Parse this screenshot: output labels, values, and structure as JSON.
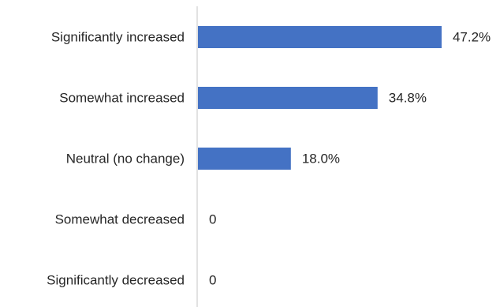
{
  "chart_data": {
    "type": "bar",
    "orientation": "horizontal",
    "categories": [
      "Significantly increased",
      "Somewhat increased",
      "Neutral (no change)",
      "Somewhat decreased",
      "Significantly decreased"
    ],
    "values": [
      47.2,
      34.8,
      18.0,
      0,
      0
    ],
    "value_labels": [
      "47.2%",
      "34.8%",
      "18.0%",
      "0",
      "0"
    ],
    "xlim": [
      0,
      55
    ],
    "grid": false,
    "bar_color": "#4472c4",
    "axis_color": "#d9d9d9",
    "text_color": "#262626"
  }
}
